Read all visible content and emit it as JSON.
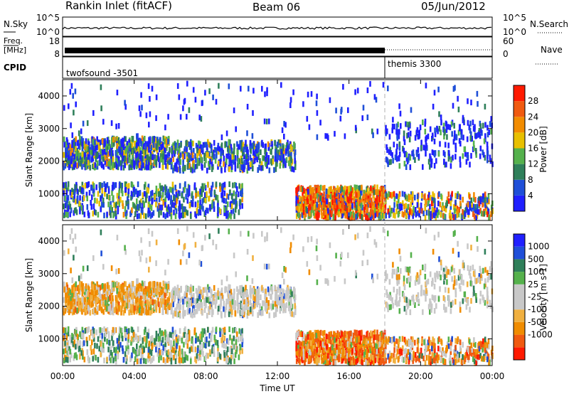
{
  "header": {
    "station": "Rankin Inlet (fitACF)",
    "beam": "Beam 06",
    "date": "05/Jun/2012"
  },
  "colors": {
    "power_scale": [
      "#2020ff",
      "#1f4fd8",
      "#2f7f5a",
      "#55b14c",
      "#e8c000",
      "#f28c00",
      "#f05a10",
      "#ff1a00"
    ],
    "velocity_scale": [
      "#ff1a00",
      "#f05a10",
      "#f08c00",
      "#f0b040",
      "#c8c8c8",
      "#c8c8c8",
      "#55b14c",
      "#2f7f5a",
      "#1f4fd8",
      "#2020ff"
    ]
  },
  "info_panel": {
    "nsky_label": "N.Sky",
    "nsky_ticks": [
      "10^5",
      "10^0"
    ],
    "nsearch_label": "N.Search",
    "nsearch_ticks": [
      "10^5",
      "10^0"
    ],
    "freq_label_1": "Freq.",
    "freq_label_2": "[MHz]",
    "freq_ticks": [
      "18",
      "8"
    ],
    "nave_label": "Nave",
    "nave_ticks": [
      "60",
      "0"
    ],
    "cpid_label": "CPID",
    "cpid_1": "twofsound -3501",
    "cpid_2": "themis 3300"
  },
  "chart_data": [
    {
      "type": "heatmap",
      "name": "Power",
      "xlabel": "",
      "ylabel": "Slant Range [km]",
      "x_ticks": [
        "00:00",
        "04:00",
        "08:00",
        "12:00",
        "16:00",
        "20:00",
        "00:00"
      ],
      "xlim_hours": [
        0,
        24
      ],
      "ylim_km": [
        180,
        4500
      ],
      "y_ticks": [
        1000,
        2000,
        3000,
        4000
      ],
      "colorbar_label": "Power [dB]",
      "colorbar_ticks": [
        4,
        8,
        12,
        16,
        20,
        24,
        28
      ],
      "colorbar_range": [
        0,
        32
      ],
      "mode_change_hour": 18.0
    },
    {
      "type": "heatmap",
      "name": "Velocity",
      "xlabel": "Time UT",
      "ylabel": "Slant Range [km]",
      "x_ticks": [
        "00:00",
        "04:00",
        "08:00",
        "12:00",
        "16:00",
        "20:00",
        "00:00"
      ],
      "xlim_hours": [
        0,
        24
      ],
      "ylim_km": [
        180,
        4500
      ],
      "y_ticks": [
        1000,
        2000,
        3000,
        4000
      ],
      "colorbar_label": "Velocity [m s-1]",
      "colorbar_ticks": [
        "1000",
        "500",
        "100",
        "25",
        "-25",
        "-100",
        "-500",
        "-1000"
      ],
      "mode_change_hour": 18.0
    }
  ]
}
